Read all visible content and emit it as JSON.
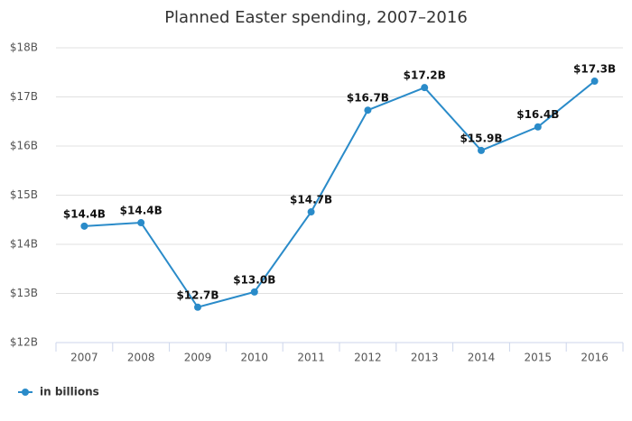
{
  "chart_data": {
    "type": "line",
    "title": "Planned Easter spending, 2007–2016",
    "categories": [
      "2007",
      "2008",
      "2009",
      "2010",
      "2011",
      "2012",
      "2013",
      "2014",
      "2015",
      "2016"
    ],
    "series": [
      {
        "name": "in billions",
        "color": "#2a8bc9",
        "values": [
          14.37,
          14.44,
          12.72,
          13.03,
          14.66,
          16.73,
          17.19,
          15.91,
          16.39,
          17.32
        ],
        "value_labels": [
          "$14.4B",
          "$14.4B",
          "$12.7B",
          "$13.0B",
          "$14.7B",
          "$16.7B",
          "$17.2B",
          "$15.9B",
          "$16.4B",
          "$17.3B"
        ]
      }
    ],
    "ylim": [
      12,
      18
    ],
    "yticks": [
      {
        "value": 12,
        "label": "$12B"
      },
      {
        "value": 13,
        "label": "$13B"
      },
      {
        "value": 14,
        "label": "$14B"
      },
      {
        "value": 15,
        "label": "$15B"
      },
      {
        "value": 16,
        "label": "$16B"
      },
      {
        "value": 17,
        "label": "$17B"
      },
      {
        "value": 18,
        "label": "$18B"
      }
    ],
    "grid": true,
    "legend": "bottom-left"
  }
}
